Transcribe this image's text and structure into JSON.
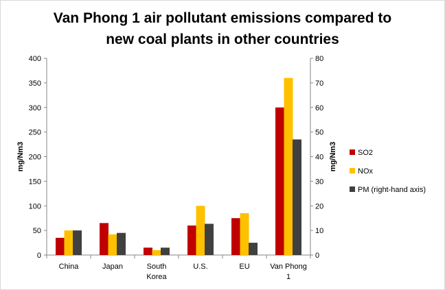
{
  "chart_data": {
    "type": "bar",
    "title_lines": [
      "Van Phong 1 air pollutant emissions compared to",
      "new coal plants in other countries"
    ],
    "categories": [
      [
        "China"
      ],
      [
        "Japan"
      ],
      [
        "South",
        "Korea"
      ],
      [
        "U.S."
      ],
      [
        "EU"
      ],
      [
        "Van Phong",
        "1"
      ]
    ],
    "series": [
      {
        "name": "SO2",
        "axis": "left",
        "color": "#c00000",
        "values": [
          35,
          65,
          15,
          60,
          75,
          300
        ]
      },
      {
        "name": "NOx",
        "axis": "left",
        "color": "#ffc000",
        "values": [
          50,
          42,
          10,
          100,
          85,
          360
        ]
      },
      {
        "name": "PM (right-hand axis)",
        "axis": "right",
        "color": "#404040",
        "values": [
          10,
          9,
          3,
          12.7,
          5,
          47
        ]
      }
    ],
    "y_left": {
      "label": "mg/Nm3",
      "min": 0,
      "max": 400,
      "ticks": [
        0,
        50,
        100,
        150,
        200,
        250,
        300,
        350,
        400
      ]
    },
    "y_right": {
      "label": "mg/Nm3",
      "min": 0,
      "max": 80,
      "ticks": [
        0,
        10,
        20,
        30,
        40,
        50,
        60,
        70,
        80
      ]
    },
    "grid": false,
    "legend": "right"
  }
}
